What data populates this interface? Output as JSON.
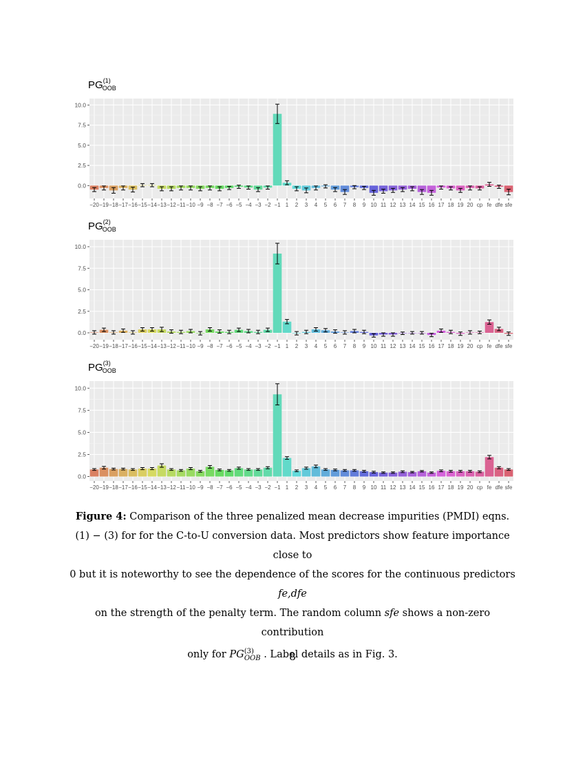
{
  "categories": [
    "-20",
    "-19",
    "-18",
    "-17",
    "-16",
    "-15",
    "-14",
    "-13",
    "-12",
    "-11",
    "-10",
    "-9",
    "-8",
    "-7",
    "-6",
    "-5",
    "-4",
    "-3",
    "-2",
    "-1",
    "1",
    "2",
    "3",
    "4",
    "5",
    "6",
    "7",
    "8",
    "9",
    "10",
    "11",
    "12",
    "13",
    "14",
    "15",
    "16",
    "17",
    "18",
    "19",
    "20",
    "cp",
    "fe",
    "dfe",
    "sfe"
  ],
  "chart_data": [
    {
      "type": "bar",
      "title_main": "PG",
      "title_sup": "(1)",
      "title_sub": "OOB",
      "ylim": [
        -1.6,
        10.8
      ],
      "yticks": [
        0.0,
        2.5,
        5.0,
        7.5,
        10.0
      ],
      "ytick_labels": [
        "0.0",
        "2.5",
        "5.0",
        "7.5",
        "10.0"
      ],
      "grid": true,
      "values": [
        -0.5,
        -0.3,
        -0.6,
        -0.3,
        -0.5,
        0.05,
        0.05,
        -0.4,
        -0.4,
        -0.3,
        -0.3,
        -0.4,
        -0.3,
        -0.4,
        -0.3,
        -0.15,
        -0.25,
        -0.5,
        -0.25,
        8.9,
        0.35,
        -0.4,
        -0.6,
        -0.3,
        -0.1,
        -0.5,
        -0.8,
        -0.2,
        -0.3,
        -0.9,
        -0.7,
        -0.6,
        -0.5,
        -0.4,
        -0.8,
        -0.9,
        -0.25,
        -0.35,
        -0.6,
        -0.3,
        -0.35,
        0.15,
        -0.15,
        -0.8
      ],
      "errors": [
        0.25,
        0.25,
        0.35,
        0.25,
        0.3,
        0.2,
        0.2,
        0.25,
        0.25,
        0.25,
        0.25,
        0.25,
        0.25,
        0.25,
        0.2,
        0.2,
        0.2,
        0.25,
        0.2,
        1.2,
        0.25,
        0.25,
        0.3,
        0.25,
        0.2,
        0.25,
        0.3,
        0.2,
        0.2,
        0.3,
        0.25,
        0.25,
        0.25,
        0.25,
        0.3,
        0.3,
        0.2,
        0.2,
        0.25,
        0.25,
        0.2,
        0.25,
        0.2,
        0.35
      ]
    },
    {
      "type": "bar",
      "title_main": "PG",
      "title_sup": "(2)",
      "title_sub": "OOB",
      "ylim": [
        -0.8,
        10.8
      ],
      "yticks": [
        0.0,
        2.5,
        5.0,
        7.5,
        10.0
      ],
      "ytick_labels": [
        "0.0",
        "2.5",
        "5.0",
        "7.5",
        "10.0"
      ],
      "grid": true,
      "values": [
        0.05,
        0.35,
        0.05,
        0.25,
        0.05,
        0.4,
        0.4,
        0.4,
        0.15,
        0.1,
        0.2,
        -0.05,
        0.4,
        0.15,
        0.1,
        0.35,
        0.2,
        0.1,
        0.35,
        9.2,
        1.3,
        -0.05,
        0.1,
        0.4,
        0.3,
        0.15,
        0.05,
        0.2,
        0.1,
        -0.3,
        -0.2,
        -0.2,
        -0.05,
        0.0,
        0.0,
        -0.25,
        0.25,
        0.1,
        -0.1,
        0.05,
        0.05,
        1.25,
        0.45,
        -0.1
      ],
      "errors": [
        0.2,
        0.2,
        0.2,
        0.2,
        0.2,
        0.2,
        0.2,
        0.25,
        0.2,
        0.2,
        0.2,
        0.2,
        0.2,
        0.2,
        0.2,
        0.2,
        0.2,
        0.2,
        0.2,
        1.2,
        0.25,
        0.2,
        0.2,
        0.2,
        0.2,
        0.2,
        0.2,
        0.2,
        0.2,
        0.2,
        0.2,
        0.2,
        0.15,
        0.15,
        0.15,
        0.2,
        0.2,
        0.2,
        0.2,
        0.2,
        0.15,
        0.25,
        0.2,
        0.2
      ]
    },
    {
      "type": "bar",
      "title_main": "PG",
      "title_sup": "(3)",
      "title_sub": "OOB",
      "ylim": [
        -0.5,
        10.8
      ],
      "yticks": [
        0.0,
        2.5,
        5.0,
        7.5,
        10.0
      ],
      "ytick_labels": [
        "0.0",
        "2.5",
        "5.0",
        "7.5",
        "10.0"
      ],
      "grid": true,
      "values": [
        0.8,
        1.0,
        0.85,
        0.85,
        0.8,
        0.9,
        0.9,
        1.25,
        0.8,
        0.7,
        0.9,
        0.6,
        1.1,
        0.75,
        0.7,
        0.95,
        0.8,
        0.8,
        1.0,
        9.3,
        2.1,
        0.65,
        0.95,
        1.15,
        0.8,
        0.75,
        0.7,
        0.7,
        0.6,
        0.5,
        0.45,
        0.45,
        0.55,
        0.5,
        0.6,
        0.45,
        0.65,
        0.6,
        0.6,
        0.6,
        0.55,
        2.2,
        1.0,
        0.8
      ],
      "errors": [
        0.1,
        0.15,
        0.1,
        0.1,
        0.1,
        0.12,
        0.12,
        0.2,
        0.1,
        0.1,
        0.12,
        0.1,
        0.15,
        0.1,
        0.1,
        0.12,
        0.1,
        0.1,
        0.12,
        1.2,
        0.15,
        0.1,
        0.12,
        0.15,
        0.1,
        0.1,
        0.1,
        0.1,
        0.1,
        0.1,
        0.08,
        0.08,
        0.1,
        0.08,
        0.08,
        0.08,
        0.1,
        0.1,
        0.1,
        0.1,
        0.1,
        0.2,
        0.12,
        0.1
      ]
    }
  ],
  "caption": {
    "label": "Figure 4:",
    "line1": " Comparison of the three penalized mean decrease impurities (PMDI) eqns.",
    "line2": "(1) − (3) for for the C-to-U conversion data. Most predictors show feature importance close to",
    "line3a": "0 but it is noteworthy to see the dependence of the scores for the continuous predictors ",
    "line3b": "fe,dfe",
    "line4a": "on the strength of the penalty term. The random column ",
    "line4b": "sfe",
    "line4c": " shows a non-zero contribution",
    "line5a": "only for ",
    "line5_pg": "PG",
    "line5_sup": "(3)",
    "line5_sub": "OOB",
    "line5b": ". Label details as in Fig. 3."
  },
  "page_number": "8"
}
